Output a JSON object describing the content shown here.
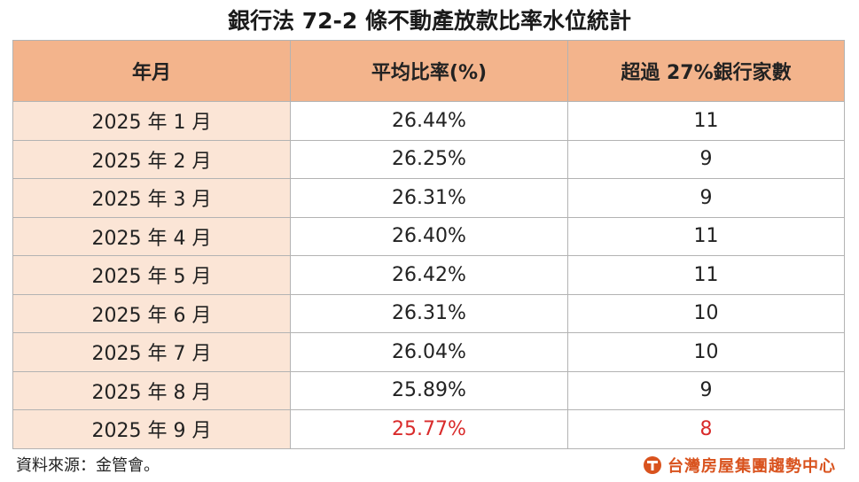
{
  "title": "銀行法 72-2 條不動產放款比率水位統計",
  "table": {
    "headers": [
      "年月",
      "平均比率(%)",
      "超過 27%銀行家數"
    ],
    "rows": [
      {
        "month": "2025 年 1 月",
        "ratio": "26.44%",
        "count": "11",
        "highlight": false
      },
      {
        "month": "2025 年 2 月",
        "ratio": "26.25%",
        "count": "9",
        "highlight": false
      },
      {
        "month": "2025 年 3 月",
        "ratio": "26.31%",
        "count": "9",
        "highlight": false
      },
      {
        "month": "2025 年 4 月",
        "ratio": "26.40%",
        "count": "11",
        "highlight": false
      },
      {
        "month": "2025 年 5 月",
        "ratio": "26.42%",
        "count": "11",
        "highlight": false
      },
      {
        "month": "2025 年 6 月",
        "ratio": "26.31%",
        "count": "10",
        "highlight": false
      },
      {
        "month": "2025 年 7 月",
        "ratio": "26.04%",
        "count": "10",
        "highlight": false
      },
      {
        "month": "2025 年 8 月",
        "ratio": "25.89%",
        "count": "9",
        "highlight": false
      },
      {
        "month": "2025 年 9 月",
        "ratio": "25.77%",
        "count": "8",
        "highlight": true
      }
    ]
  },
  "footer": {
    "source": "資料來源：金管會。",
    "brand": "台灣房屋集團趨勢中心",
    "brand_icon": "taiwan-realty-logo-icon"
  },
  "colors": {
    "header_bg": "#f3b48c",
    "month_col_bg": "#fbe5d6",
    "highlight_text": "#d92b2b",
    "brand": "#d9531e"
  }
}
